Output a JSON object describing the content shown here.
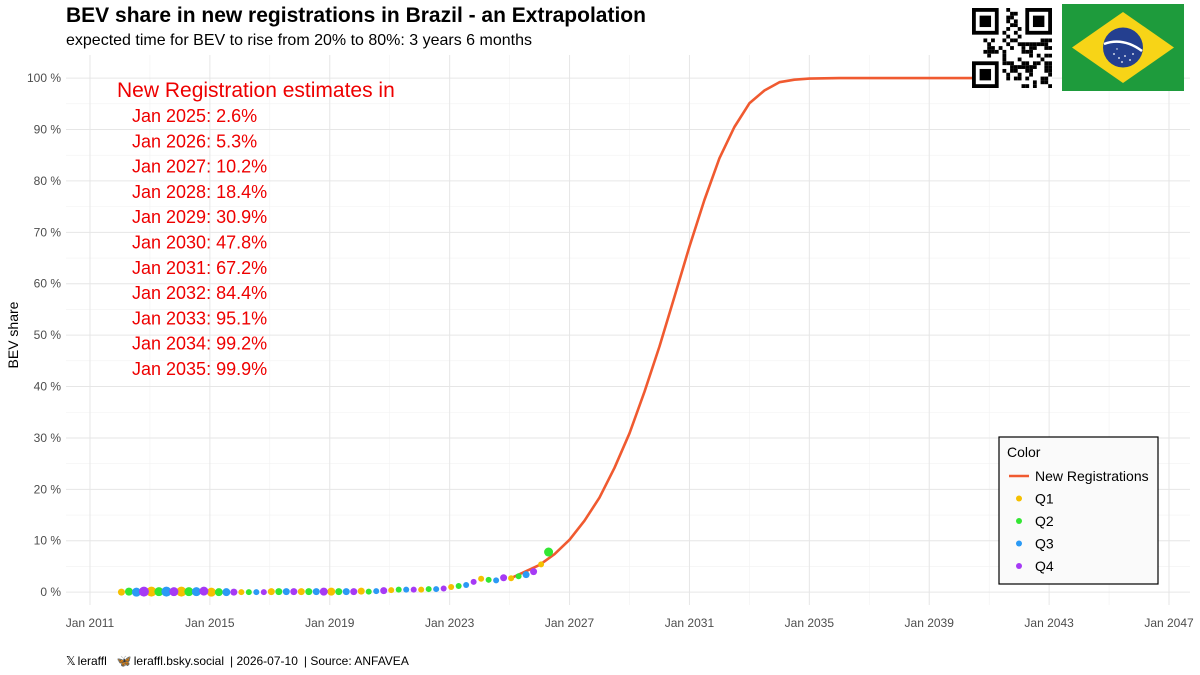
{
  "title": "BEV share in new registrations in Brazil - an Extrapolation",
  "subtitle": "expected time for BEV to rise from 20% to 80%: 3 years 6 months",
  "footer": {
    "x_handle": "leraffl",
    "bsky_handle": "leraffl.bsky.social",
    "date": "| 2026-07-10",
    "source": "| Source: ANFAVEA"
  },
  "estimates": {
    "heading": "New Registration estimates in",
    "lines": [
      "Jan 2025: 2.6%",
      "Jan 2026: 5.3%",
      "Jan 2027: 10.2%",
      "Jan 2028: 18.4%",
      "Jan 2029: 30.9%",
      "Jan 2030: 47.8%",
      "Jan 2031: 67.2%",
      "Jan 2032: 84.4%",
      "Jan 2033: 95.1%",
      "Jan 2034: 99.2%",
      "Jan 2035: 99.9%"
    ],
    "color": "#ee0000"
  },
  "legend": {
    "title": "Color",
    "items": [
      {
        "label": "New Registrations",
        "color": "#f05a30",
        "kind": "line"
      },
      {
        "label": "Q1",
        "color": "#f5c000",
        "kind": "point"
      },
      {
        "label": "Q2",
        "color": "#33e633",
        "kind": "point"
      },
      {
        "label": "Q3",
        "color": "#2b9af5",
        "kind": "point"
      },
      {
        "label": "Q4",
        "color": "#a63af5",
        "kind": "point"
      }
    ]
  },
  "chart_data": {
    "type": "line",
    "title": "BEV share in new registrations in Brazil - an Extrapolation",
    "ylabel": "BEV share",
    "xlabel": "",
    "xlim": [
      2010.2,
      2047.7
    ],
    "ylim": [
      -2.5,
      104.5
    ],
    "x_ticks": [
      {
        "label": "Jan 2011",
        "value": 2011
      },
      {
        "label": "Jan 2015",
        "value": 2015
      },
      {
        "label": "Jan 2019",
        "value": 2019
      },
      {
        "label": "Jan 2023",
        "value": 2023
      },
      {
        "label": "Jan 2027",
        "value": 2027
      },
      {
        "label": "Jan 2031",
        "value": 2031
      },
      {
        "label": "Jan 2035",
        "value": 2035
      },
      {
        "label": "Jan 2039",
        "value": 2039
      },
      {
        "label": "Jan 2043",
        "value": 2043
      },
      {
        "label": "Jan 2047",
        "value": 2047
      }
    ],
    "y_ticks": [
      {
        "label": "0 %",
        "value": 0
      },
      {
        "label": "10 %",
        "value": 10
      },
      {
        "label": "20 %",
        "value": 20
      },
      {
        "label": "30 %",
        "value": 30
      },
      {
        "label": "40 %",
        "value": 40
      },
      {
        "label": "50 %",
        "value": 50
      },
      {
        "label": "60 %",
        "value": 60
      },
      {
        "label": "70 %",
        "value": 70
      },
      {
        "label": "80 %",
        "value": 80
      },
      {
        "label": "90 %",
        "value": 90
      },
      {
        "label": "100 %",
        "value": 100
      }
    ],
    "grid": true,
    "legend_position": "bottom-right",
    "series": [
      {
        "name": "New Registrations",
        "color": "#f05a30",
        "x": [
          2025.0,
          2026.0,
          2026.5,
          2027.0,
          2027.5,
          2028.0,
          2028.5,
          2029.0,
          2029.5,
          2030.0,
          2030.5,
          2031.0,
          2031.5,
          2032.0,
          2032.5,
          2033.0,
          2033.5,
          2034.0,
          2034.5,
          2035.0,
          2036.0,
          2038.0,
          2041.0,
          2043.0
        ],
        "y": [
          2.6,
          5.3,
          7.4,
          10.2,
          13.9,
          18.4,
          24.2,
          30.9,
          39.0,
          47.8,
          57.5,
          67.2,
          76.3,
          84.4,
          90.5,
          95.1,
          97.6,
          99.2,
          99.7,
          99.9,
          100,
          100,
          100,
          100
        ]
      },
      {
        "name": "Q1",
        "color": "#f5c000",
        "x": [
          2012.05,
          2013.05,
          2014.05,
          2015.05,
          2016.05,
          2017.05,
          2018.05,
          2019.05,
          2020.05,
          2021.05,
          2022.05,
          2023.05,
          2024.05,
          2025.05,
          2026.05
        ],
        "y": [
          0.0,
          0.1,
          0.1,
          0.0,
          0.0,
          0.1,
          0.1,
          0.1,
          0.2,
          0.4,
          0.5,
          1.0,
          2.6,
          2.7,
          5.4
        ],
        "sizes": [
          7,
          10,
          10,
          9,
          6,
          7,
          7,
          8,
          7,
          6,
          6,
          6,
          6,
          6,
          6
        ]
      },
      {
        "name": "Q2",
        "color": "#33e633",
        "x": [
          2012.3,
          2013.3,
          2014.3,
          2015.3,
          2016.3,
          2017.3,
          2018.3,
          2019.3,
          2020.3,
          2021.3,
          2022.3,
          2023.3,
          2024.3,
          2025.3,
          2026.3
        ],
        "y": [
          0.1,
          0.1,
          0.1,
          0.0,
          0.0,
          0.1,
          0.1,
          0.1,
          0.1,
          0.5,
          0.6,
          1.2,
          2.4,
          3.1,
          7.8
        ],
        "sizes": [
          8,
          9,
          9,
          8,
          6,
          7,
          7,
          7,
          6,
          6,
          6,
          6,
          6,
          6,
          9
        ]
      },
      {
        "name": "Q3",
        "color": "#2b9af5",
        "x": [
          2012.55,
          2013.55,
          2014.55,
          2015.55,
          2016.55,
          2017.55,
          2018.55,
          2019.55,
          2020.55,
          2021.55,
          2022.55,
          2023.55,
          2024.55,
          2025.55
        ],
        "y": [
          0.0,
          0.1,
          0.1,
          0.0,
          0.0,
          0.1,
          0.1,
          0.1,
          0.2,
          0.5,
          0.6,
          1.4,
          2.3,
          3.4
        ],
        "sizes": [
          9,
          10,
          9,
          8,
          6,
          7,
          7,
          7,
          6,
          6,
          6,
          6,
          6,
          7
        ]
      },
      {
        "name": "Q4",
        "color": "#a63af5",
        "x": [
          2012.8,
          2013.8,
          2014.8,
          2015.8,
          2016.8,
          2017.8,
          2018.8,
          2019.8,
          2020.8,
          2021.8,
          2022.8,
          2023.8,
          2024.8,
          2025.8
        ],
        "y": [
          0.1,
          0.1,
          0.2,
          0.0,
          0.0,
          0.1,
          0.1,
          0.1,
          0.3,
          0.5,
          0.7,
          2.0,
          2.8,
          4.0
        ],
        "sizes": [
          10,
          9,
          9,
          7,
          6,
          7,
          8,
          7,
          7,
          6,
          6,
          6,
          7,
          7
        ]
      }
    ]
  }
}
